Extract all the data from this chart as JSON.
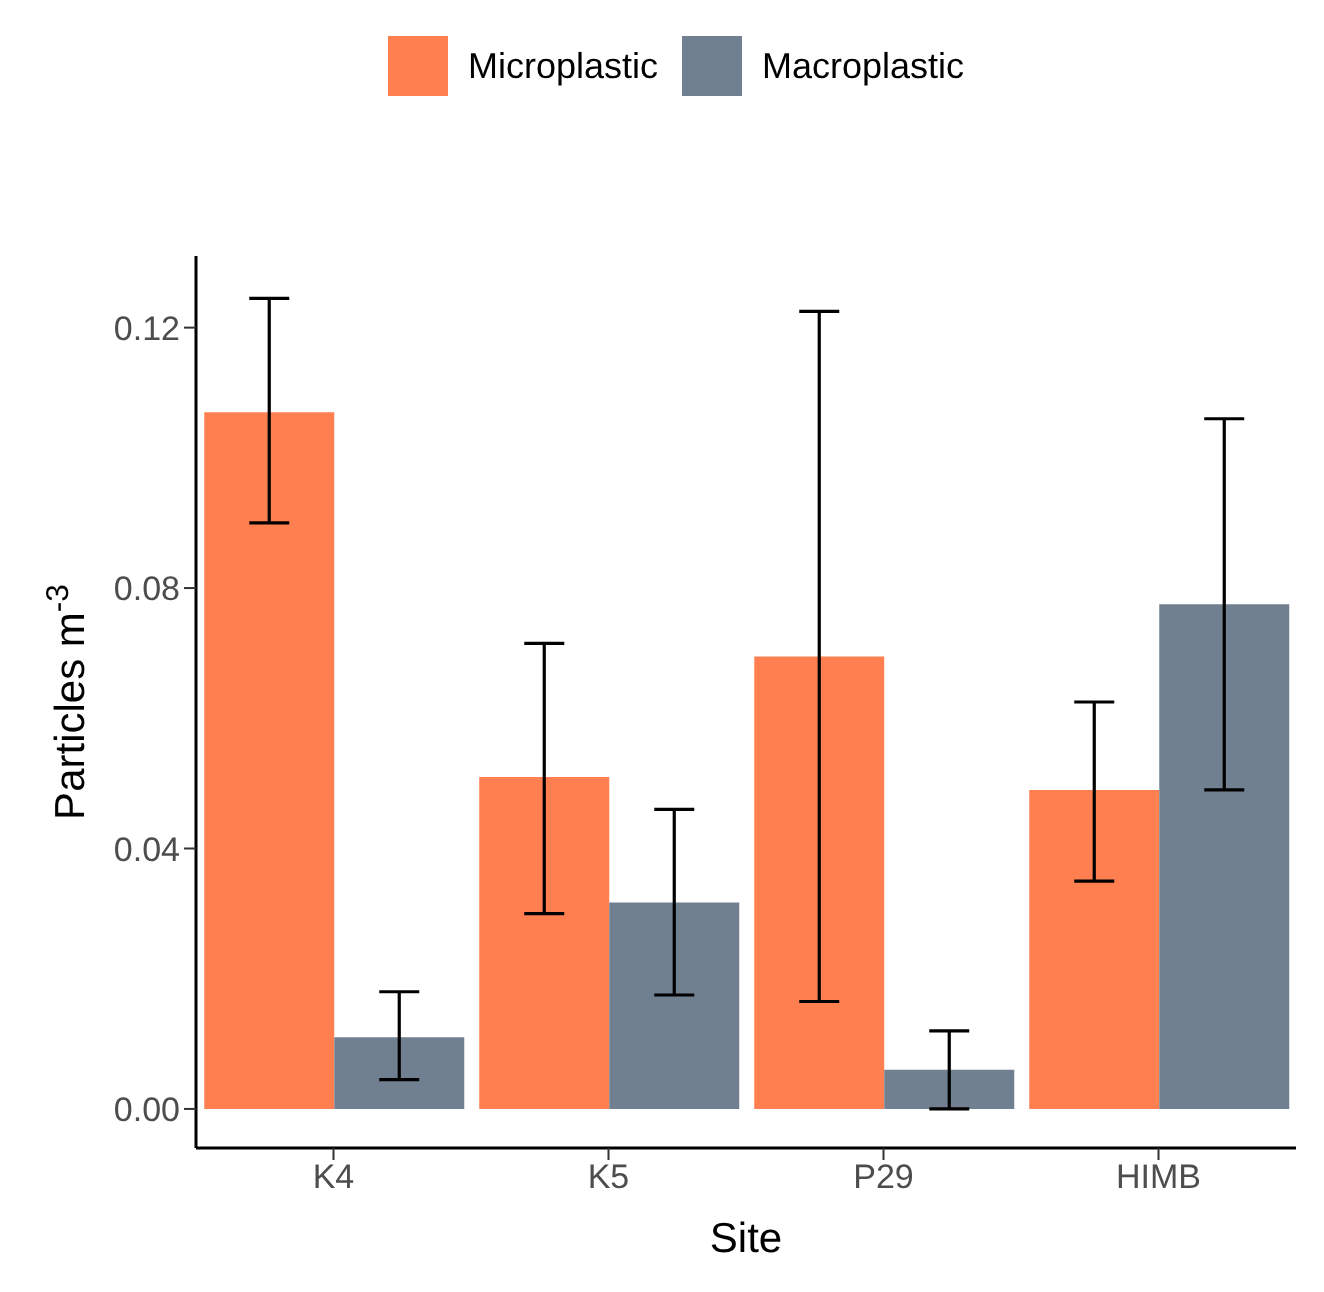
{
  "chart_data": {
    "type": "bar",
    "xlabel": "Site",
    "ylabel": "Particles m$^{-3}$",
    "categories": [
      "K4",
      "K5",
      "P29",
      "HIMB"
    ],
    "series": [
      {
        "name": "Microplastic",
        "color": "#ff7f50",
        "values": [
          0.107,
          0.051,
          0.0695,
          0.049
        ],
        "errors": [
          [
            0.09,
            0.1245
          ],
          [
            0.03,
            0.0715
          ],
          [
            0.0165,
            0.1225
          ],
          [
            0.035,
            0.0625
          ]
        ]
      },
      {
        "name": "Macroplastic",
        "color": "#708090",
        "values": [
          0.011,
          0.0317,
          0.006,
          0.0775
        ],
        "errors": [
          [
            0.0045,
            0.018
          ],
          [
            0.0175,
            0.046
          ],
          [
            0.0,
            0.012
          ],
          [
            0.049,
            0.106
          ]
        ]
      }
    ],
    "ylim": [
      -0.006,
      0.131
    ],
    "yticks": [
      {
        "value": 0,
        "label": "0.00"
      },
      {
        "value": 0.04,
        "label": "0.04"
      },
      {
        "value": 0.08,
        "label": "0.08"
      },
      {
        "value": 0.12,
        "label": "0.12"
      }
    ],
    "grid": false,
    "legend": "top"
  }
}
